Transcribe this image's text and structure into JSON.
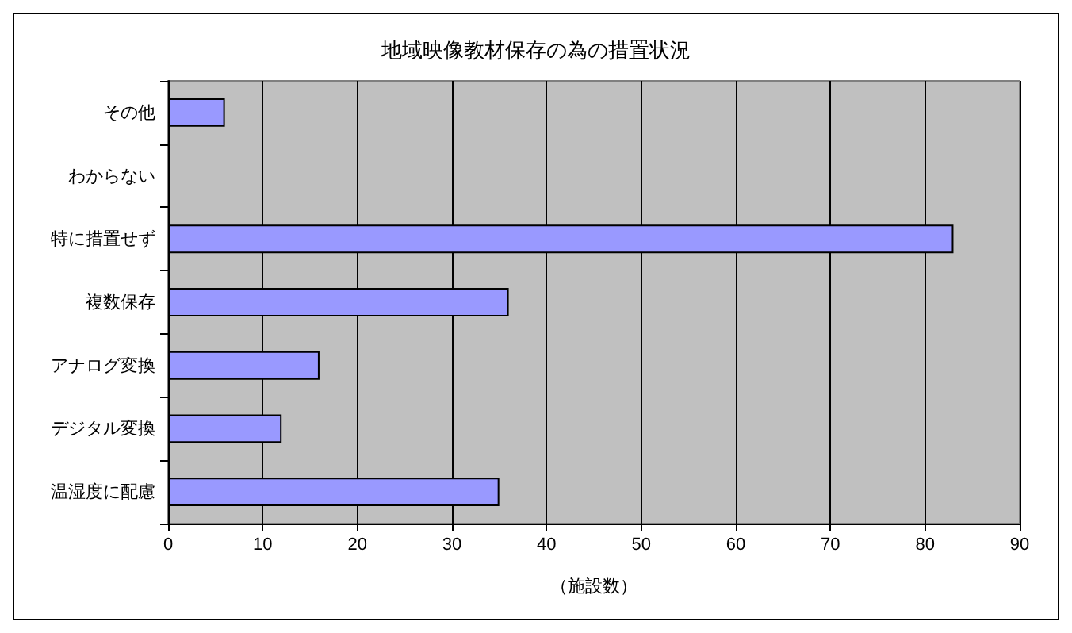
{
  "chart_data": {
    "type": "bar",
    "orientation": "horizontal",
    "title": "地域映像教材保存の為の措置状況",
    "xlabel": "（施設数）",
    "categories": [
      "その他",
      "わからない",
      "特に措置せず",
      "複数保存",
      "アナログ変換",
      "デジタル変換",
      "温湿度に配慮"
    ],
    "values": [
      6,
      0,
      83,
      36,
      16,
      12,
      35
    ],
    "color": "#9999ff",
    "xlim": [
      0,
      90
    ],
    "xticks": [
      0,
      10,
      20,
      30,
      40,
      50,
      60,
      70,
      80,
      90
    ],
    "grid": "x"
  }
}
